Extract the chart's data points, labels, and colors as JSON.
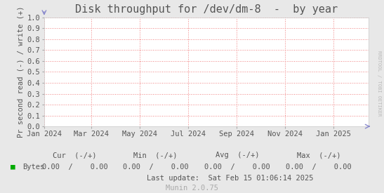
{
  "title": "Disk throughput for /dev/dm-8  -  by year",
  "ylabel": "Pr second read (-) / write (+)",
  "background_color": "#e8e8e8",
  "plot_bg_color": "#ffffff",
  "grid_color": "#f08080",
  "grid_linestyle": ":",
  "xlim_start": 1704067200,
  "xlim_end": 1739574000,
  "ylim": [
    0.0,
    1.0
  ],
  "yticks": [
    0.0,
    0.1,
    0.2,
    0.3,
    0.4,
    0.5,
    0.6,
    0.7,
    0.8,
    0.9,
    1.0
  ],
  "xtick_labels": [
    "Jan 2024",
    "Mar 2024",
    "May 2024",
    "Jul 2024",
    "Sep 2024",
    "Nov 2024",
    "Jan 2025"
  ],
  "xtick_positions": [
    1704067200,
    1709251200,
    1714521600,
    1719792000,
    1725148800,
    1730419200,
    1735689600
  ],
  "legend_label": "Bytes",
  "legend_color": "#00aa00",
  "watermark": "RRDTOOL / TOBI OETIKER",
  "footer_munin": "Munin 2.0.75",
  "last_update": "Last update:  Sat Feb 15 01:06:14 2025",
  "title_fontsize": 11,
  "axis_label_fontsize": 7.5,
  "tick_fontsize": 7.5,
  "footer_fontsize": 7.5,
  "watermark_fontsize": 5,
  "text_color": "#555555",
  "watermark_color": "#bbbbbb",
  "munin_color": "#aaaaaa",
  "arrow_color": "#8888cc"
}
